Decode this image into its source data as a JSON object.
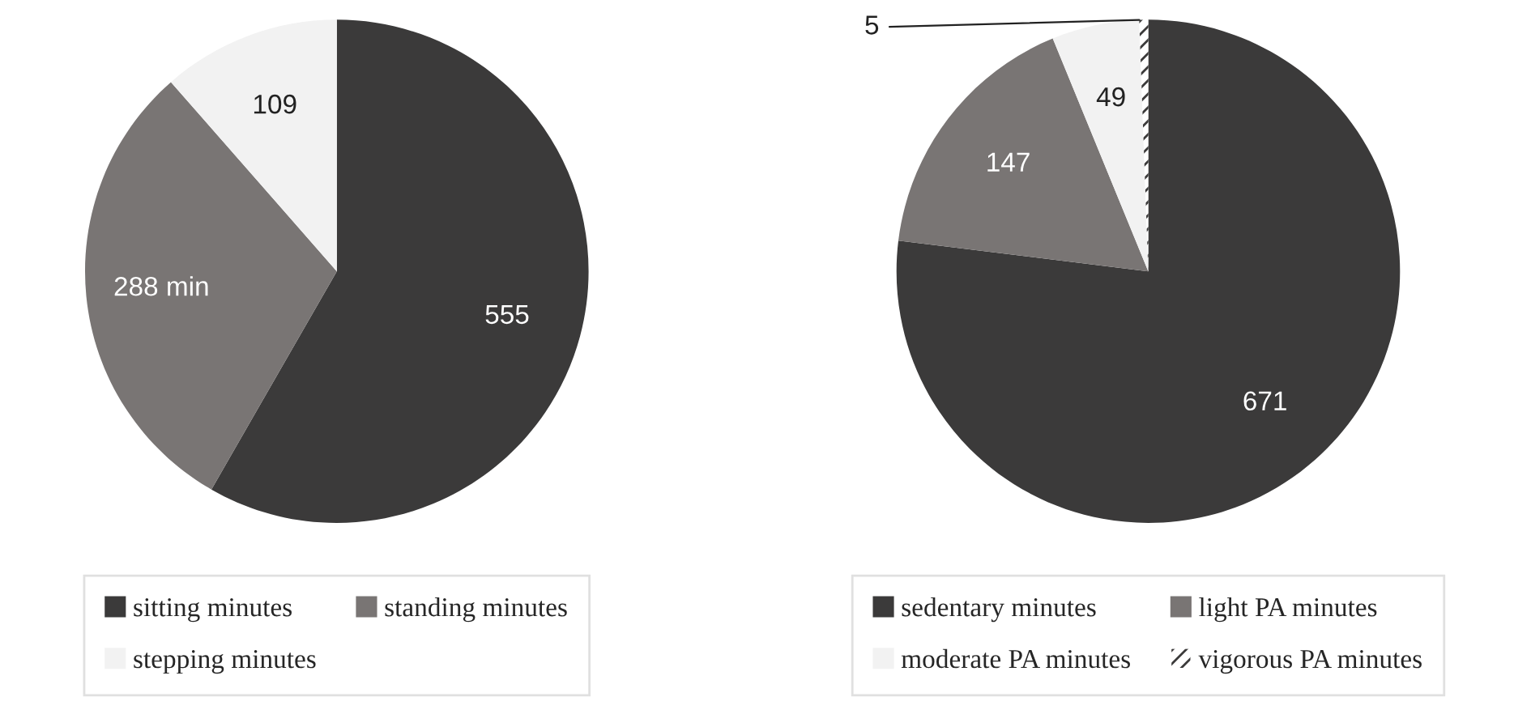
{
  "chart_data": [
    {
      "type": "pie",
      "categories": [
        "sitting minutes",
        "standing minutes",
        "stepping minutes"
      ],
      "values": [
        555,
        288,
        109
      ],
      "colors": [
        "#3b3a3a",
        "#797574",
        "#f2f2f2"
      ],
      "value_labels": [
        "555",
        "288 min",
        "109"
      ],
      "legend": "bottom"
    },
    {
      "type": "pie",
      "categories": [
        "sedentary minutes",
        "light PA minutes",
        "moderate PA minutes",
        "vigorous PA minutes"
      ],
      "values": [
        671,
        147,
        49,
        5
      ],
      "colors": [
        "#3b3a3a",
        "#797574",
        "#f2f2f2",
        "#3b3a3a"
      ],
      "data_labels": true,
      "legend": "bottom"
    }
  ]
}
